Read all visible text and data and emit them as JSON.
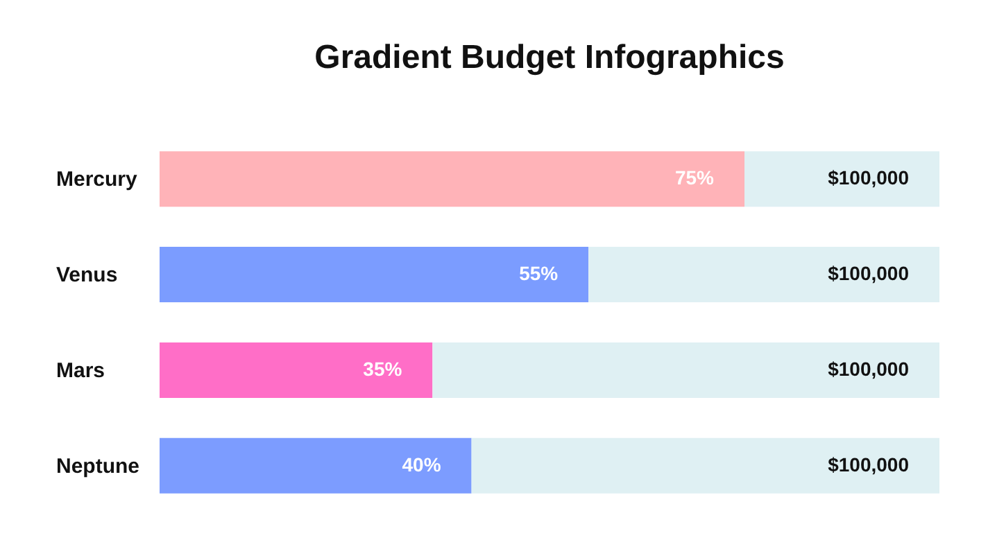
{
  "chart_data": {
    "type": "bar",
    "title": "Gradient Budget Infographics",
    "orientation": "horizontal",
    "categories": [
      "Mercury",
      "Venus",
      "Mars",
      "Neptune"
    ],
    "xlim": [
      0,
      100
    ],
    "grid": false,
    "stacked": true,
    "series": [
      {
        "colors": [
          "#ffb3b8",
          "#7b9cff",
          "#ff6ec7",
          "#7c9cff"
        ],
        "values": [
          75,
          55,
          35,
          40
        ],
        "value_labels": [
          "75%",
          "55%",
          "35%",
          "40%"
        ]
      },
      {
        "color": "#dff0f3",
        "values": [
          25,
          45,
          65,
          60
        ]
      }
    ],
    "annotations": [
      "$100,000",
      "$100,000",
      "$100,000",
      "$100,000"
    ]
  }
}
